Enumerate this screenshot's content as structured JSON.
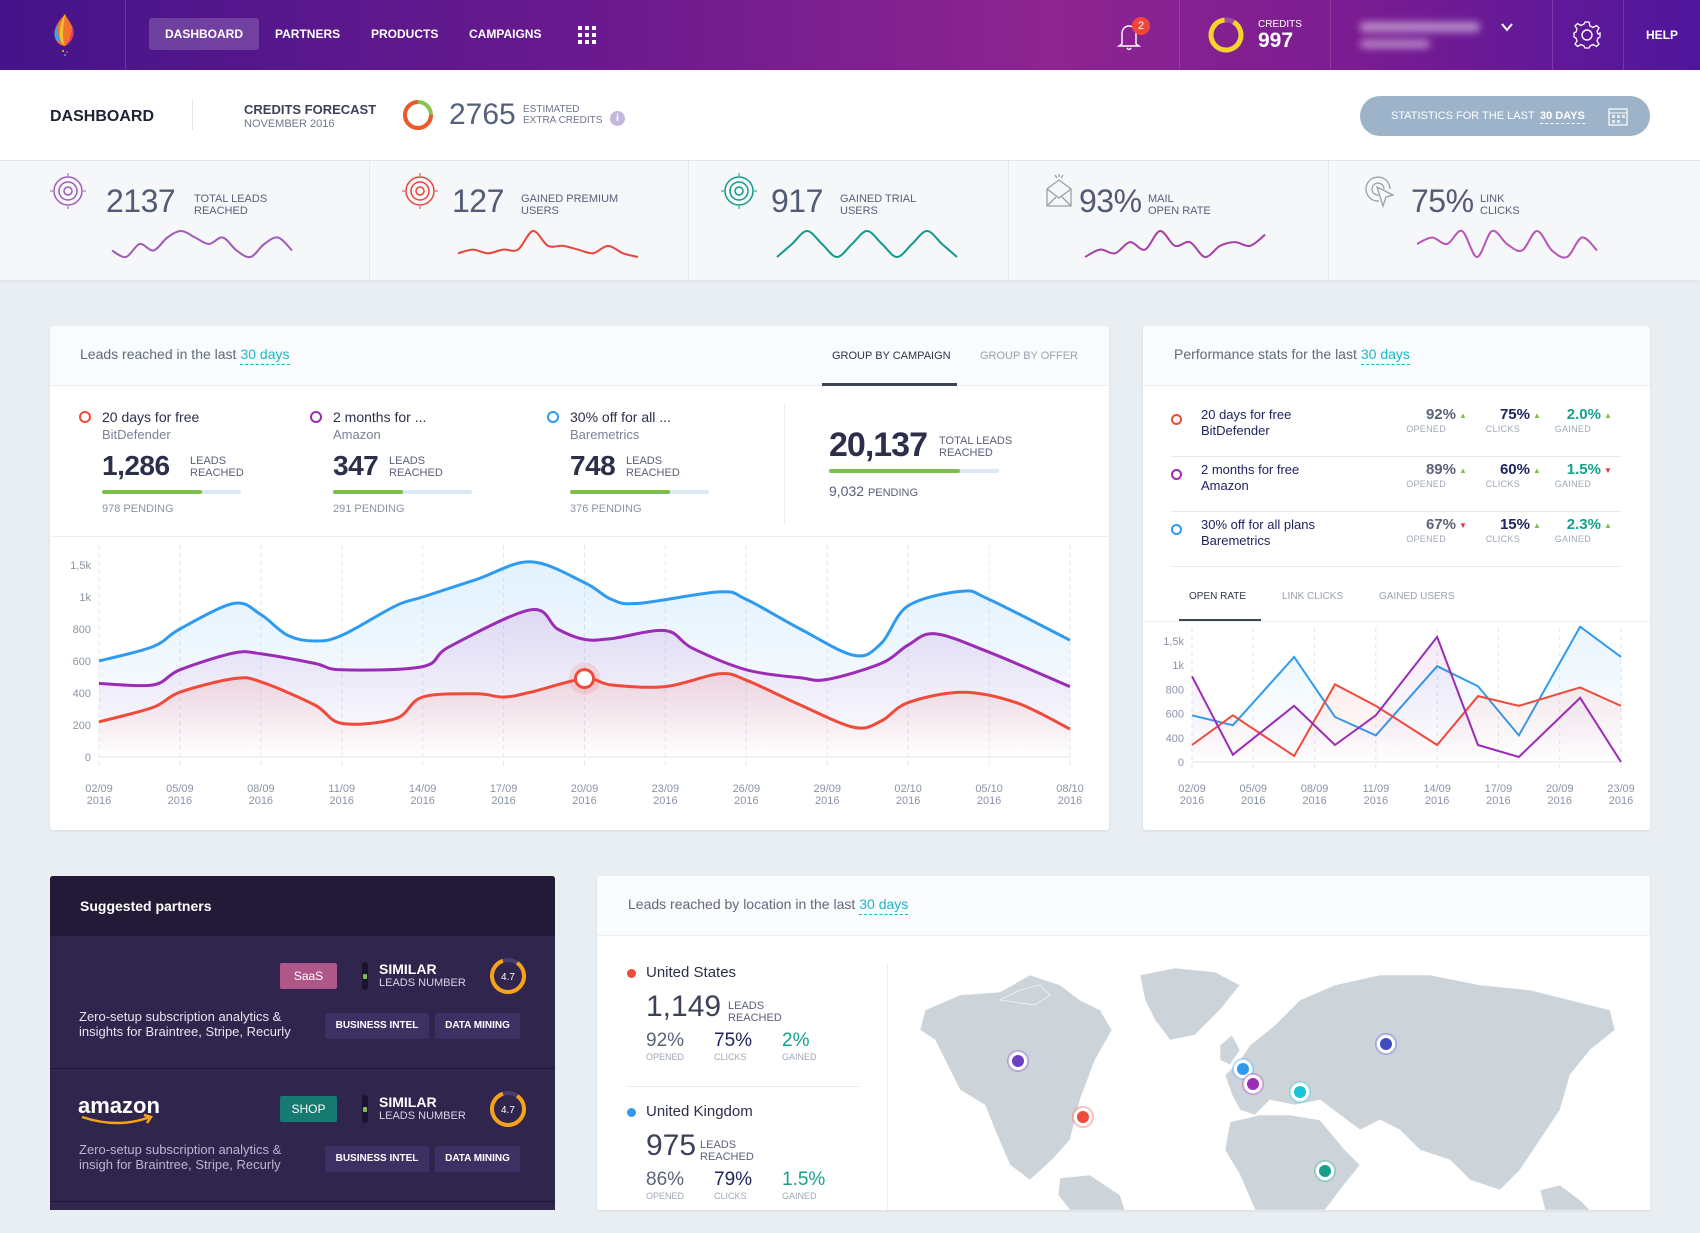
{
  "nav": {
    "items": [
      "DASHBOARD",
      "PARTNERS",
      "PRODUCTS",
      "CAMPAIGNS"
    ],
    "active": "DASHBOARD",
    "notifications": "2",
    "credits_label": "CREDITS",
    "credits_value": "997",
    "credits_ring_fraction": 0.9,
    "help": "HELP"
  },
  "subheader": {
    "title": "DASHBOARD",
    "forecast_title": "CREDITS FORECAST",
    "forecast_month": "NOVEMBER 2016",
    "forecast_value": "2765",
    "forecast_label_1": "ESTIMATED",
    "forecast_label_2": "EXTRA CREDITS",
    "forecast_ring_fraction": 0.75,
    "stats_button_prefix": "STATISTICS FOR THE LAST",
    "stats_button_period": "30 DAYS"
  },
  "kpis": [
    {
      "value": "2137",
      "label_1": "TOTAL LEADS",
      "label_2": "REACHED",
      "icon": "target-icon",
      "color": "#a05cb8",
      "trend": [
        3,
        2,
        4,
        3,
        5,
        6,
        5,
        4,
        5,
        3,
        2,
        4,
        5,
        3
      ]
    },
    {
      "value": "127",
      "label_1": "GAINED PREMIUM",
      "label_2": "USERS",
      "icon": "target-icon",
      "color": "#e8453c",
      "trend": [
        2,
        3,
        2,
        3,
        3,
        8,
        4,
        4,
        3,
        2,
        4,
        2,
        1
      ]
    },
    {
      "value": "917",
      "label_1": "GAINED TRIAL",
      "label_2": "USERS",
      "icon": "target-icon",
      "color": "#139a8a",
      "trend": [
        3,
        4,
        5,
        4,
        3,
        4,
        5,
        4,
        3,
        4,
        5,
        4,
        3
      ]
    },
    {
      "value": "93%",
      "label_1": "MAIL",
      "label_2": "OPEN RATE",
      "icon": "envelope-icon",
      "color": "#a63fa8",
      "trend": [
        1,
        3,
        2,
        5,
        3,
        8,
        4,
        5,
        1,
        4,
        5,
        4,
        7
      ]
    },
    {
      "value": "75%",
      "label_1": "LINK",
      "label_2": "CLICKS",
      "icon": "cursor-click-icon",
      "color": "#b955b8",
      "trend": [
        4,
        5,
        4,
        6,
        2,
        6,
        4,
        3,
        6,
        3,
        2,
        5,
        3
      ]
    }
  ],
  "leads": {
    "title": "Leads reached in the last",
    "period": "30 days",
    "tabs": [
      "GROUP BY CAMPAIGN",
      "GROUP BY OFFER"
    ],
    "campaigns": [
      {
        "name": "20 days for free",
        "partner": "BitDefender",
        "value": "1,286",
        "label_1": "LEADS",
        "label_2": "REACHED",
        "pending": "978 PENDING",
        "progress": 0.72,
        "color": "#f04a3b"
      },
      {
        "name": "2 months for ...",
        "partner": "Amazon",
        "value": "347",
        "label_1": "LEADS",
        "label_2": "REACHED",
        "pending": "291 PENDING",
        "progress": 0.5,
        "color": "#9b2cb5"
      },
      {
        "name": "30% off for all ...",
        "partner": "Baremetrics",
        "value": "748",
        "label_1": "LEADS",
        "label_2": "REACHED",
        "pending": "376 PENDING",
        "progress": 0.72,
        "color": "#2e9bf0"
      }
    ],
    "total": {
      "value": "20,137",
      "label_1": "TOTAL LEADS",
      "label_2": "REACHED",
      "pending": "9,032",
      "pending_label": "PENDING",
      "progress": 0.77
    }
  },
  "performance": {
    "title": "Performance stats for the last",
    "period": "30 days",
    "rows": [
      {
        "name": "20 days for free",
        "partner": "BitDefender",
        "color": "#f04a3b",
        "opened": "92%",
        "opened_trend": "up",
        "clicks": "75%",
        "clicks_trend": "up",
        "gained": "2.0%",
        "gained_trend": "up"
      },
      {
        "name": "2 months for free",
        "partner": "Amazon",
        "color": "#9b2cb5",
        "opened": "89%",
        "opened_trend": "up",
        "clicks": "60%",
        "clicks_trend": "up",
        "gained": "1.5%",
        "gained_trend": "down"
      },
      {
        "name": "30% off for all plans",
        "partner": "Baremetrics",
        "color": "#2e9bf0",
        "opened": "67%",
        "opened_trend": "down",
        "clicks": "15%",
        "clicks_trend": "up",
        "gained": "2.3%",
        "gained_trend": "up"
      }
    ],
    "labels": {
      "opened": "OPENED",
      "clicks": "CLICKS",
      "gained": "GAINED"
    },
    "tabs": [
      "OPEN RATE",
      "LINK CLICKS",
      "GAINED USERS"
    ]
  },
  "chart_data": [
    {
      "type": "area",
      "smooth": true,
      "yticks": [
        "0",
        "200",
        "400",
        "600",
        "800",
        "1k",
        "1,5k"
      ],
      "ytick_values": [
        0,
        200,
        400,
        600,
        800,
        1000,
        1500
      ],
      "xticks": [
        "2016-09-02",
        "2016-09-05",
        "2016-09-08",
        "2016-09-11",
        "2016-09-14",
        "2016-09-17",
        "2016-09-20",
        "2016-09-23",
        "2016-09-26",
        "2016-09-29",
        "2016-10-02",
        "2016-10-05",
        "2016-10-08"
      ],
      "grid": "vertical-dashed",
      "highlight": {
        "series": 2,
        "x": "2016-09-20",
        "value": 490
      },
      "series": [
        {
          "color": "#2e9bf0",
          "points": [
            [
              "2016-09-02",
              600
            ],
            [
              "2016-09-04",
              690
            ],
            [
              "2016-09-05",
              800
            ],
            [
              "2016-09-07",
              960
            ],
            [
              "2016-09-08",
              890
            ],
            [
              "2016-09-09",
              760
            ],
            [
              "2016-09-10",
              725
            ],
            [
              "2016-09-11",
              760
            ],
            [
              "2016-09-13",
              945
            ],
            [
              "2016-09-14",
              1000
            ],
            [
              "2016-09-16",
              1275
            ],
            [
              "2016-09-18",
              1550
            ],
            [
              "2016-09-20",
              1225
            ],
            [
              "2016-09-21",
              985
            ],
            [
              "2016-09-22",
              960
            ],
            [
              "2016-09-25",
              1080
            ],
            [
              "2016-09-26",
              985
            ],
            [
              "2016-09-28",
              800
            ],
            [
              "2016-09-30",
              635
            ],
            [
              "2016-10-01",
              710
            ],
            [
              "2016-10-02",
              945
            ],
            [
              "2016-10-04",
              1090
            ],
            [
              "2016-10-05",
              985
            ],
            [
              "2016-10-08",
              730
            ]
          ]
        },
        {
          "color": "#9b2cb5",
          "points": [
            [
              "2016-09-02",
              460
            ],
            [
              "2016-09-04",
              450
            ],
            [
              "2016-09-05",
              545
            ],
            [
              "2016-09-07",
              650
            ],
            [
              "2016-09-08",
              645
            ],
            [
              "2016-09-10",
              585
            ],
            [
              "2016-09-11",
              545
            ],
            [
              "2016-09-14",
              565
            ],
            [
              "2016-09-15",
              690
            ],
            [
              "2016-09-18",
              920
            ],
            [
              "2016-09-19",
              800
            ],
            [
              "2016-09-20",
              735
            ],
            [
              "2016-09-21",
              740
            ],
            [
              "2016-09-23",
              790
            ],
            [
              "2016-09-24",
              680
            ],
            [
              "2016-09-26",
              545
            ],
            [
              "2016-09-28",
              495
            ],
            [
              "2016-09-29",
              485
            ],
            [
              "2016-10-01",
              585
            ],
            [
              "2016-10-02",
              700
            ],
            [
              "2016-10-03",
              770
            ],
            [
              "2016-10-05",
              655
            ],
            [
              "2016-10-08",
              440
            ]
          ]
        },
        {
          "color": "#f04a3b",
          "points": [
            [
              "2016-09-02",
              220
            ],
            [
              "2016-09-04",
              310
            ],
            [
              "2016-09-05",
              405
            ],
            [
              "2016-09-07",
              490
            ],
            [
              "2016-09-08",
              470
            ],
            [
              "2016-09-10",
              325
            ],
            [
              "2016-09-11",
              210
            ],
            [
              "2016-09-13",
              240
            ],
            [
              "2016-09-14",
              375
            ],
            [
              "2016-09-16",
              395
            ],
            [
              "2016-09-17",
              375
            ],
            [
              "2016-09-18",
              405
            ],
            [
              "2016-09-20",
              490
            ],
            [
              "2016-09-21",
              450
            ],
            [
              "2016-09-23",
              440
            ],
            [
              "2016-09-25",
              520
            ],
            [
              "2016-09-26",
              480
            ],
            [
              "2016-09-28",
              325
            ],
            [
              "2016-09-30",
              185
            ],
            [
              "2016-10-01",
              225
            ],
            [
              "2016-10-02",
              340
            ],
            [
              "2016-10-04",
              405
            ],
            [
              "2016-10-06",
              340
            ],
            [
              "2016-10-08",
              175
            ]
          ]
        }
      ]
    },
    {
      "type": "line",
      "yticks": [
        "0",
        "400",
        "600",
        "800",
        "1k",
        "1,5k"
      ],
      "ytick_values": [
        0,
        400,
        600,
        800,
        1000,
        1500
      ],
      "xticks": [
        "2016-09-02",
        "2016-09-05",
        "2016-09-08",
        "2016-09-11",
        "2016-09-14",
        "2016-09-17",
        "2016-09-20",
        "2016-09-23"
      ],
      "grid": "vertical-dashed",
      "series": [
        {
          "color": "#2e9bf0",
          "points": [
            [
              "2016-09-02",
              586
            ],
            [
              "2016-09-04",
              504
            ],
            [
              "2016-09-07",
              1170
            ],
            [
              "2016-09-09",
              572
            ],
            [
              "2016-09-11",
              420
            ],
            [
              "2016-09-14",
              992
            ],
            [
              "2016-09-16",
              826
            ],
            [
              "2016-09-18",
              420
            ],
            [
              "2016-09-21",
              1795
            ],
            [
              "2016-09-23",
              1170
            ]
          ]
        },
        {
          "color": "#f04a3b",
          "points": [
            [
              "2016-09-02",
              281
            ],
            [
              "2016-09-04",
              586
            ],
            [
              "2016-09-07",
              99
            ],
            [
              "2016-09-09",
              842
            ],
            [
              "2016-09-11",
              664
            ],
            [
              "2016-09-14",
              281
            ],
            [
              "2016-09-16",
              744
            ],
            [
              "2016-09-18",
              664
            ],
            [
              "2016-09-21",
              816
            ],
            [
              "2016-09-23",
              664
            ]
          ]
        },
        {
          "color": "#9b2cb5",
          "points": [
            [
              "2016-09-02",
              908
            ],
            [
              "2016-09-04",
              121
            ],
            [
              "2016-09-07",
              664
            ],
            [
              "2016-09-09",
              281
            ],
            [
              "2016-09-11",
              586
            ],
            [
              "2016-09-14",
              1585
            ],
            [
              "2016-09-16",
              281
            ],
            [
              "2016-09-18",
              83
            ],
            [
              "2016-09-21",
              730
            ],
            [
              "2016-09-23",
              0
            ]
          ]
        }
      ]
    }
  ],
  "partners": {
    "title": "Suggested partners",
    "items": [
      {
        "logo": "",
        "tag": "SaaS",
        "tag_color": "#b0578a",
        "similar": "SIMILAR",
        "similar_sub": "LEADS NUMBER",
        "score": "4.7",
        "score_fraction": 0.85,
        "description": "Zero-setup subscription analytics & insights for Braintree, Stripe, Recurly",
        "buttons": [
          "BUSINESS INTEL",
          "DATA MINING"
        ]
      },
      {
        "logo": "amazon",
        "tag": "SHOP",
        "tag_color": "#167a70",
        "similar": "SIMILAR",
        "similar_sub": "LEADS NUMBER",
        "score": "4.7",
        "score_fraction": 0.85,
        "description": "Zero-setup subscription analytics & insigh for Braintree, Stripe, Recurly",
        "buttons": [
          "BUSINESS INTEL",
          "DATA MINING"
        ]
      }
    ]
  },
  "location": {
    "title": "Leads reached by location in the last",
    "period": "30 days",
    "countries": [
      {
        "name": "United States",
        "color": "#f04a3b",
        "value": "1,149",
        "label_1": "LEADS",
        "label_2": "REACHED",
        "opened": "92%",
        "clicks": "75%",
        "gained": "2%"
      },
      {
        "name": "United Kingdom",
        "color": "#2e9bf0",
        "value": "975",
        "label_1": "LEADS",
        "label_2": "REACHED",
        "opened": "86%",
        "clicks": "79%",
        "gained": "1.5%"
      }
    ],
    "labels": {
      "opened": "OPENED",
      "clicks": "CLICKS",
      "gained": "GAINED"
    },
    "markers": [
      {
        "place": "Canada",
        "color": "#6a3fc0"
      },
      {
        "place": "United States",
        "color": "#f04a3b"
      },
      {
        "place": "United Kingdom",
        "color": "#2e9bf0"
      },
      {
        "place": "France",
        "color": "#9b2cb5"
      },
      {
        "place": "Black Sea",
        "color": "#19c4d4"
      },
      {
        "place": "Russia",
        "color": "#3f4cc0"
      },
      {
        "place": "Ethiopia",
        "color": "#14a08a"
      }
    ]
  }
}
